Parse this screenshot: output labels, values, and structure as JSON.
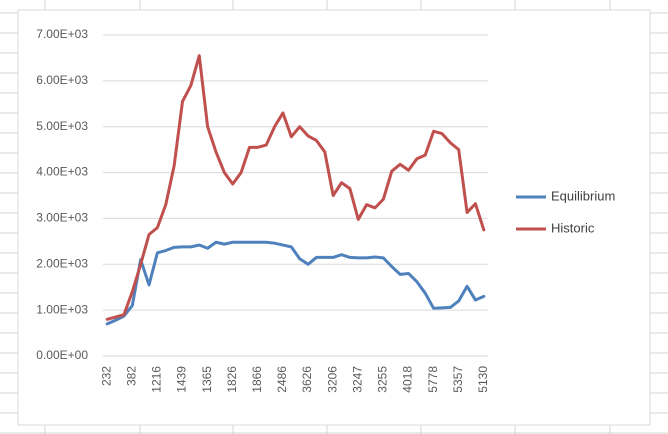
{
  "chart_data": {
    "type": "line",
    "categories": [
      "232",
      null,
      null,
      "382",
      null,
      null,
      "1216",
      null,
      null,
      "1439",
      null,
      null,
      "1365",
      null,
      null,
      "1826",
      null,
      null,
      "1866",
      null,
      null,
      "2486",
      null,
      null,
      "3626",
      null,
      null,
      "3206",
      null,
      null,
      "3247",
      null,
      null,
      "3255",
      null,
      null,
      "4018",
      null,
      null,
      "5778",
      null,
      null,
      "5357",
      null,
      null,
      "5130"
    ],
    "series": [
      {
        "name": "Equilibrium",
        "color": "#4f81bd",
        "values": [
          700,
          780,
          870,
          1100,
          2100,
          1550,
          2250,
          2300,
          2370,
          2380,
          2380,
          2420,
          2350,
          2480,
          2440,
          2480,
          2480,
          2480,
          2480,
          2480,
          2460,
          2420,
          2380,
          2120,
          2000,
          2150,
          2150,
          2150,
          2210,
          2150,
          2140,
          2140,
          2160,
          2140,
          1950,
          1780,
          1800,
          1620,
          1370,
          1040,
          1050,
          1060,
          1200,
          1520,
          1220,
          1300
        ]
      },
      {
        "name": "Historic",
        "color": "#c0504d",
        "values": [
          800,
          850,
          900,
          1400,
          2000,
          2650,
          2800,
          3300,
          4150,
          5550,
          5900,
          6550,
          5000,
          4450,
          4000,
          3750,
          4000,
          4550,
          4550,
          4600,
          5000,
          5300,
          4780,
          5000,
          4800,
          4700,
          4450,
          3500,
          3780,
          3650,
          2980,
          3300,
          3230,
          3420,
          4030,
          4180,
          4050,
          4300,
          4380,
          4900,
          4850,
          4650,
          4500,
          3130,
          3320,
          2750
        ]
      }
    ],
    "ylim": [
      0,
      7000
    ],
    "yticks": [
      {
        "value": 0,
        "label": "0.00E+00"
      },
      {
        "value": 1000,
        "label": "1.00E+03"
      },
      {
        "value": 2000,
        "label": "2.00E+03"
      },
      {
        "value": 3000,
        "label": "3.00E+03"
      },
      {
        "value": 4000,
        "label": "4.00E+03"
      },
      {
        "value": 5000,
        "label": "5.00E+03"
      },
      {
        "value": 6000,
        "label": "6.00E+03"
      },
      {
        "value": 7000,
        "label": "7.00E+03"
      }
    ],
    "grid": true,
    "legend": "right"
  }
}
